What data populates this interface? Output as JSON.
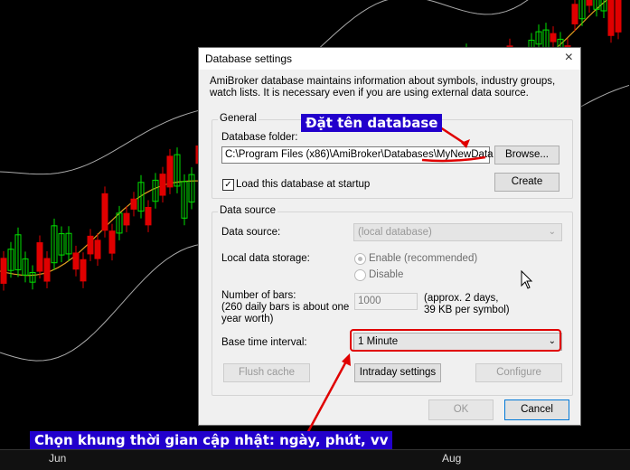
{
  "chart": {
    "x_labels": [
      "Jun",
      "Aug"
    ],
    "colors": {
      "up": "#00e000",
      "down": "#e00000",
      "band": "#aaaaaa",
      "ma": "#e0a020",
      "background": "#000000"
    }
  },
  "dialog": {
    "title": "Database settings",
    "close_icon": "×",
    "description": "AmiBroker database maintains information about symbols, industry groups, watch lists. It is necessary even if you are using external data source.",
    "general": {
      "label": "General",
      "folder_label": "Database folder:",
      "folder_value": "C:\\Program Files (x86)\\AmiBroker\\Databases\\MyNewData",
      "browse_button": "Browse...",
      "load_checkbox_label": "Load this database at startup",
      "load_checked": true,
      "create_button": "Create"
    },
    "data_source": {
      "label": "Data source",
      "source_label": "Data source:",
      "source_value": "(local database)",
      "storage_label": "Local data storage:",
      "enable_option": "Enable (recommended)",
      "disable_option": "Disable",
      "bars_label_1": "Number of bars:",
      "bars_label_2": "(260 daily bars is about one",
      "bars_label_3": "year worth)",
      "bars_value": "1000",
      "bars_hint_1": "(approx. 2 days,",
      "bars_hint_2": "39 KB per symbol)",
      "interval_label": "Base time interval:",
      "interval_value": "1 Minute",
      "flush_button": "Flush cache",
      "intraday_button": "Intraday settings",
      "configure_button": "Configure"
    },
    "ok_button": "OK",
    "cancel_button": "Cancel"
  },
  "annotations": {
    "db_name": "Đặt tên database",
    "interval": "Chọn khung thời gian cập nhật: ngày, phút, vv",
    "color": "#e00000",
    "label_bg": "#2200cc"
  }
}
